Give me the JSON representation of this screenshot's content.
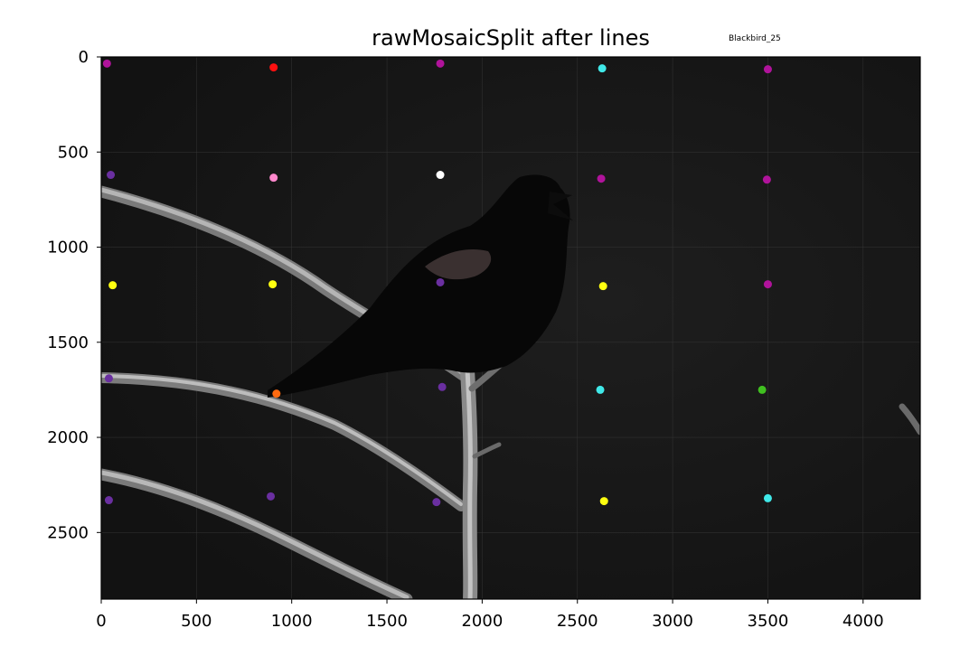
{
  "chart_data": {
    "type": "scatter",
    "title": "rawMosaicSplit after lines",
    "annotation": "Blackbird_25",
    "background": "grayscale photo: blackbird perched on bare branches",
    "xlim": [
      0,
      4300
    ],
    "ylim": [
      2850,
      0
    ],
    "y_inverted": true,
    "x_ticks": [
      0,
      500,
      1000,
      1500,
      2000,
      2500,
      3000,
      3500,
      4000
    ],
    "y_ticks": [
      0,
      500,
      1000,
      1500,
      2000,
      2500
    ],
    "grid": true,
    "legend": "none",
    "points": [
      {
        "x": 30,
        "y": 35,
        "color": "#b0139b"
      },
      {
        "x": 905,
        "y": 55,
        "color": "#ff1010"
      },
      {
        "x": 1780,
        "y": 35,
        "color": "#b0139b"
      },
      {
        "x": 2630,
        "y": 60,
        "color": "#40e8e8"
      },
      {
        "x": 3500,
        "y": 65,
        "color": "#b0139b"
      },
      {
        "x": 50,
        "y": 620,
        "color": "#6a2fa0"
      },
      {
        "x": 905,
        "y": 635,
        "color": "#ff88cc"
      },
      {
        "x": 1780,
        "y": 620,
        "color": "#ffffff"
      },
      {
        "x": 2625,
        "y": 640,
        "color": "#b0139b"
      },
      {
        "x": 3495,
        "y": 645,
        "color": "#b0139b"
      },
      {
        "x": 60,
        "y": 1200,
        "color": "#ffff10"
      },
      {
        "x": 900,
        "y": 1195,
        "color": "#ffff10"
      },
      {
        "x": 1780,
        "y": 1185,
        "color": "#6a2fa0"
      },
      {
        "x": 2635,
        "y": 1205,
        "color": "#ffff10"
      },
      {
        "x": 3500,
        "y": 1195,
        "color": "#b0139b"
      },
      {
        "x": 40,
        "y": 1690,
        "color": "#6a2fa0"
      },
      {
        "x": 920,
        "y": 1770,
        "color": "#ff6a10"
      },
      {
        "x": 1790,
        "y": 1735,
        "color": "#6a2fa0"
      },
      {
        "x": 2620,
        "y": 1750,
        "color": "#40e8e8"
      },
      {
        "x": 3470,
        "y": 1750,
        "color": "#40c020"
      },
      {
        "x": 40,
        "y": 2330,
        "color": "#6a2fa0"
      },
      {
        "x": 890,
        "y": 2310,
        "color": "#6a2fa0"
      },
      {
        "x": 1760,
        "y": 2340,
        "color": "#6a2fa0"
      },
      {
        "x": 2640,
        "y": 2335,
        "color": "#ffff10"
      },
      {
        "x": 3500,
        "y": 2320,
        "color": "#40e8e8"
      }
    ]
  }
}
